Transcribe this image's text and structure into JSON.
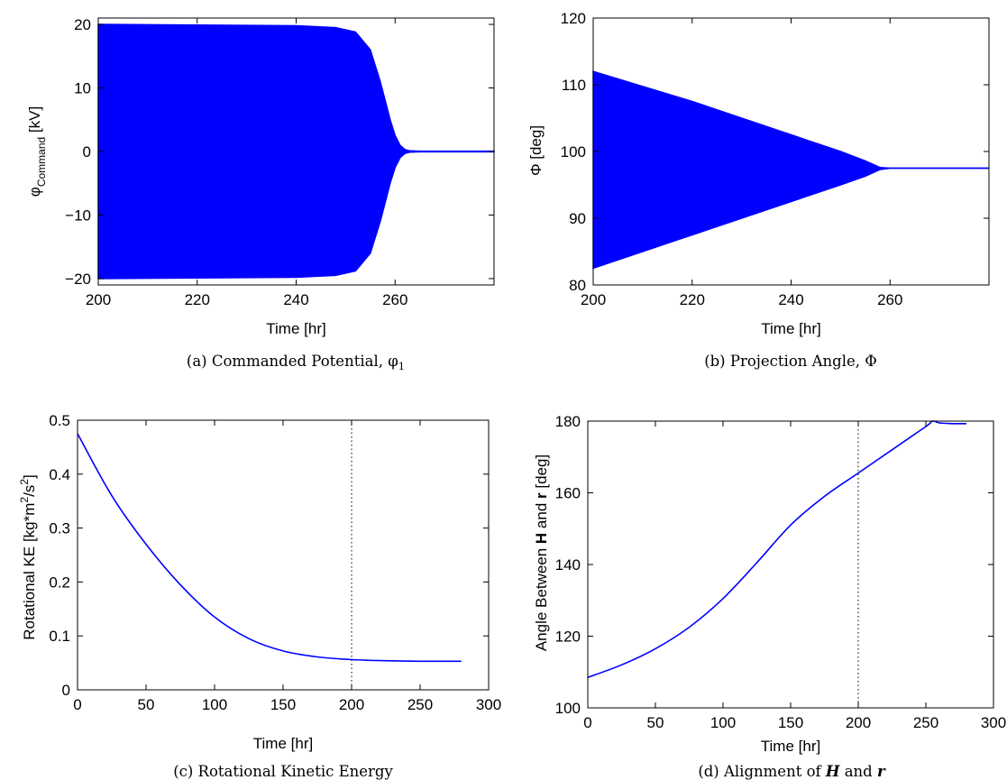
{
  "chart_data": [
    {
      "type": "area",
      "caption": "(a) Commanded Potential, φ",
      "caption_subscript": "1",
      "xlabel": "Time [hr]",
      "ylabel_main": "φ",
      "ylabel_sub": "Command",
      "ylabel_tail": " [kV]",
      "xlim": [
        200,
        280
      ],
      "ylim": [
        -21,
        21
      ],
      "xticks": [
        200,
        220,
        240,
        260
      ],
      "yticks": [
        -20,
        -10,
        0,
        10,
        20
      ],
      "ytick_labels": [
        "−20",
        "−10",
        "0",
        "10",
        "20"
      ],
      "envelope_x": [
        200,
        220,
        240,
        248,
        252,
        255,
        257,
        258,
        259,
        260,
        261,
        262,
        263,
        265,
        270,
        275,
        280
      ],
      "envelope_upper": [
        20,
        19.9,
        19.8,
        19.5,
        18.8,
        16,
        11,
        8,
        5,
        2.5,
        1,
        0.3,
        0.1,
        0.05,
        0.05,
        0.05,
        0.05
      ],
      "envelope_lower": [
        -20,
        -19.9,
        -19.8,
        -19.5,
        -18.8,
        -16,
        -11,
        -8,
        -5,
        -2.5,
        -1,
        -0.3,
        -0.1,
        -0.05,
        -0.05,
        -0.05,
        -0.05
      ],
      "color": "#0000FF"
    },
    {
      "type": "area",
      "caption": "(b) Projection Angle, Φ",
      "xlabel": "Time [hr]",
      "ylabel_main": "Φ [deg]",
      "xlim": [
        200,
        280
      ],
      "ylim": [
        80,
        120
      ],
      "xticks": [
        200,
        220,
        240,
        260
      ],
      "yticks": [
        80,
        90,
        100,
        110,
        120
      ],
      "envelope_x": [
        200,
        220,
        240,
        250,
        255,
        258,
        260,
        280
      ],
      "envelope_upper": [
        112,
        107.5,
        102.5,
        100,
        98.6,
        97.6,
        97.5,
        97.5
      ],
      "envelope_lower": [
        82.5,
        87.5,
        92.5,
        95,
        96.3,
        97.3,
        97.5,
        97.5
      ],
      "color": "#0000FF"
    },
    {
      "type": "line",
      "caption": "(c) Rotational Kinetic Energy",
      "xlabel": "Time [hr]",
      "ylabel_main": "Rotational KE [kg*m",
      "ylabel_sup1": "2",
      "ylabel_mid": "/s",
      "ylabel_sup2": "2",
      "ylabel_tail": "]",
      "xlim": [
        0,
        300
      ],
      "ylim": [
        0,
        0.5
      ],
      "xticks": [
        0,
        50,
        100,
        150,
        200,
        250,
        300
      ],
      "yticks": [
        0,
        0.1,
        0.2,
        0.3,
        0.4,
        0.5
      ],
      "vline_x": 200,
      "series": [
        {
          "x": [
            0,
            25,
            50,
            75,
            100,
            125,
            150,
            175,
            200,
            225,
            250,
            280
          ],
          "y": [
            0.475,
            0.36,
            0.27,
            0.195,
            0.135,
            0.095,
            0.072,
            0.061,
            0.056,
            0.054,
            0.053,
            0.053
          ]
        }
      ],
      "color": "#0000FF"
    },
    {
      "type": "line",
      "caption": "(d) Alignment of ",
      "caption_h": "H",
      "caption_and": " and ",
      "caption_r": "r",
      "xlabel": "Time [hr]",
      "ylabel_main": "Angle Between ",
      "ylabel_h": "H",
      "ylabel_and": " and ",
      "ylabel_r": "r",
      "ylabel_tail": " [deg]",
      "xlim": [
        0,
        300
      ],
      "ylim": [
        100,
        180
      ],
      "xticks": [
        0,
        50,
        100,
        150,
        200,
        250,
        300
      ],
      "yticks": [
        100,
        120,
        140,
        160,
        180
      ],
      "vline_x": 200,
      "series": [
        {
          "x": [
            0,
            25,
            50,
            75,
            100,
            125,
            150,
            175,
            200,
            225,
            250,
            255,
            260,
            270,
            280
          ],
          "y": [
            108.5,
            112,
            116.5,
            122.5,
            130.5,
            140.5,
            151,
            159,
            165.5,
            172,
            178.5,
            180,
            179.5,
            179.3,
            179.3
          ]
        }
      ],
      "color": "#0000FF"
    }
  ]
}
